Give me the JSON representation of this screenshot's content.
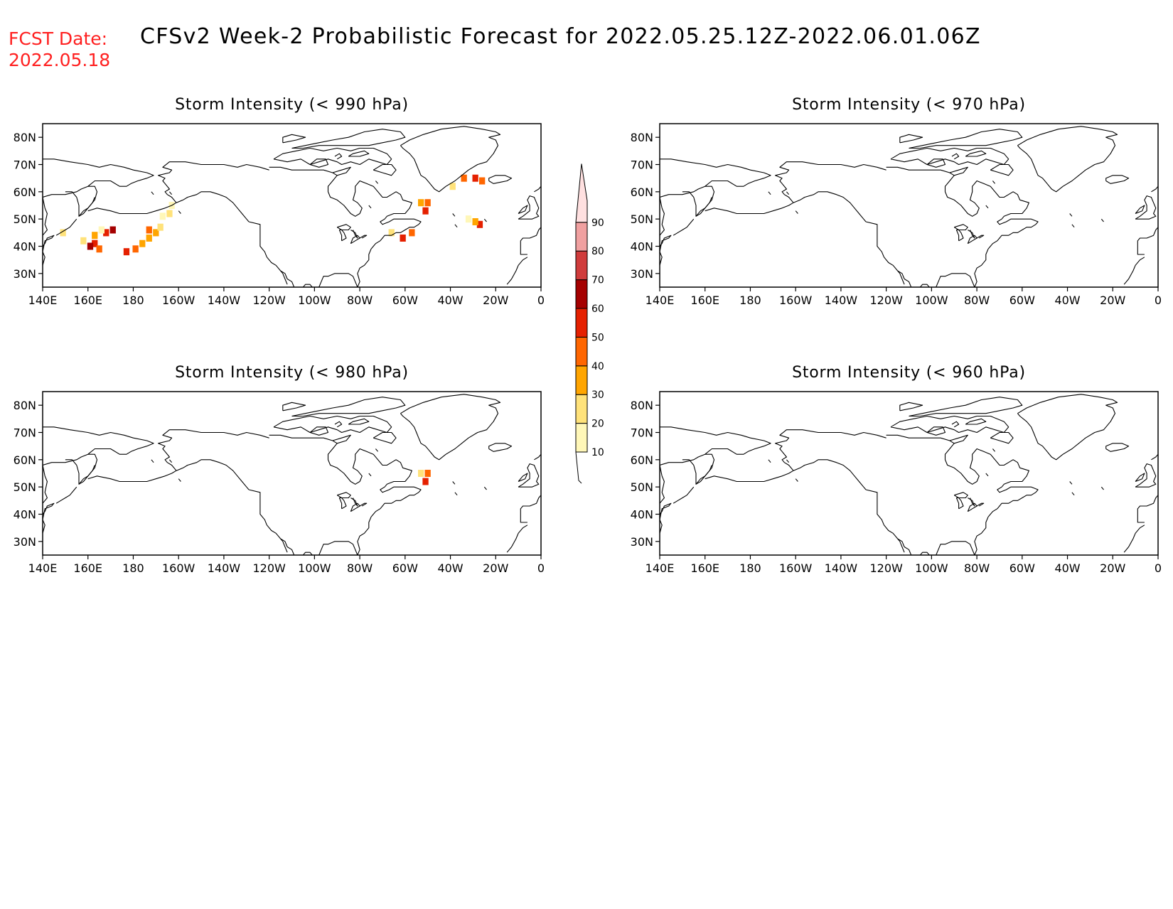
{
  "header": {
    "fcst_label": "FCST Date:",
    "fcst_date": "2022.05.18",
    "title": "CFSv2 Week-2 Probabilistic Forecast for 2022.05.25.12Z-2022.06.01.06Z",
    "fcst_color": "#ff2020",
    "title_color": "#000000"
  },
  "axes": {
    "lat_labels": [
      "80N",
      "70N",
      "60N",
      "50N",
      "40N",
      "30N"
    ],
    "lat_values": [
      80,
      70,
      60,
      50,
      40,
      30
    ],
    "lat_range": [
      25,
      85
    ],
    "lon_labels": [
      "140E",
      "160E",
      "180",
      "160W",
      "140W",
      "120W",
      "100W",
      "80W",
      "60W",
      "40W",
      "20W",
      "0"
    ],
    "lon_values": [
      140,
      160,
      180,
      200,
      220,
      240,
      260,
      280,
      300,
      320,
      340,
      360
    ],
    "lon_range": [
      140,
      360
    ]
  },
  "colorbar": {
    "levels": [
      "10",
      "20",
      "30",
      "40",
      "50",
      "60",
      "70",
      "80",
      "90"
    ],
    "colors": [
      "#fff7b8",
      "#ffe27a",
      "#ffa500",
      "#ff6600",
      "#e52000",
      "#a50000",
      "#d03c3c",
      "#f0a0a0",
      "#ffe0e0"
    ]
  },
  "panels": [
    {
      "title": "Storm Intensity (< 990 hPa)",
      "cells": [
        {
          "lon": 163,
          "lat": 41,
          "v": 55
        },
        {
          "lon": 161,
          "lat": 40,
          "v": 60
        },
        {
          "lon": 165,
          "lat": 39,
          "v": 45
        },
        {
          "lon": 158,
          "lat": 42,
          "v": 20
        },
        {
          "lon": 163,
          "lat": 44,
          "v": 30
        },
        {
          "lon": 168,
          "lat": 45,
          "v": 50
        },
        {
          "lon": 171,
          "lat": 46,
          "v": 60
        },
        {
          "lon": 166,
          "lat": 46,
          "v": 15
        },
        {
          "lon": 149,
          "lat": 45,
          "v": 20
        },
        {
          "lon": 177,
          "lat": 38,
          "v": 55
        },
        {
          "lon": 181,
          "lat": 39,
          "v": 45
        },
        {
          "lon": 184,
          "lat": 41,
          "v": 35
        },
        {
          "lon": 187,
          "lat": 43,
          "v": 30
        },
        {
          "lon": 190,
          "lat": 45,
          "v": 35
        },
        {
          "lon": 187,
          "lat": 46,
          "v": 40
        },
        {
          "lon": 192,
          "lat": 47,
          "v": 25
        },
        {
          "lon": 193,
          "lat": 51,
          "v": 15
        },
        {
          "lon": 196,
          "lat": 52,
          "v": 20
        },
        {
          "lon": 197,
          "lat": 55,
          "v": 10
        },
        {
          "lon": 309,
          "lat": 53,
          "v": 50
        },
        {
          "lon": 310,
          "lat": 56,
          "v": 45
        },
        {
          "lon": 307,
          "lat": 56,
          "v": 30
        },
        {
          "lon": 303,
          "lat": 45,
          "v": 45
        },
        {
          "lon": 299,
          "lat": 43,
          "v": 55
        },
        {
          "lon": 294,
          "lat": 45,
          "v": 20
        },
        {
          "lon": 326,
          "lat": 65,
          "v": 45
        },
        {
          "lon": 331,
          "lat": 65,
          "v": 55
        },
        {
          "lon": 334,
          "lat": 64,
          "v": 40
        },
        {
          "lon": 321,
          "lat": 62,
          "v": 20
        },
        {
          "lon": 333,
          "lat": 48,
          "v": 50
        },
        {
          "lon": 331,
          "lat": 49,
          "v": 30
        },
        {
          "lon": 328,
          "lat": 50,
          "v": 15
        }
      ]
    },
    {
      "title": "Storm Intensity (< 970 hPa)",
      "cells": []
    },
    {
      "title": "Storm Intensity (< 980 hPa)",
      "cells": [
        {
          "lon": 310,
          "lat": 55,
          "v": 45
        },
        {
          "lon": 309,
          "lat": 52,
          "v": 55
        },
        {
          "lon": 307,
          "lat": 55,
          "v": 20
        }
      ]
    },
    {
      "title": "Storm Intensity (< 960 hPa)",
      "cells": []
    }
  ]
}
